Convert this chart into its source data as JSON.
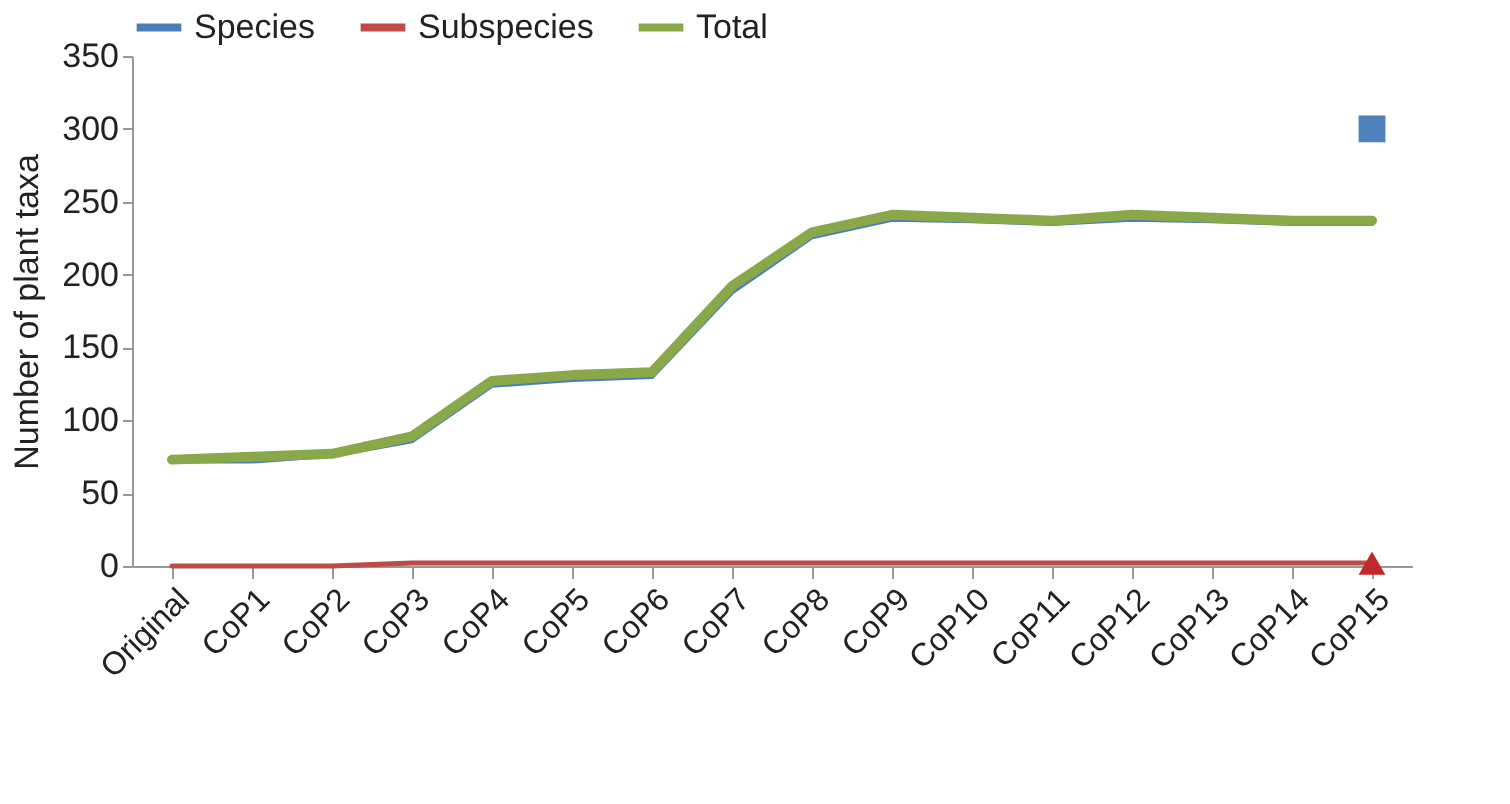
{
  "chart_data": {
    "type": "line",
    "ylabel": "Number of plant taxa",
    "categories": [
      "Original",
      "CoP1",
      "CoP2",
      "CoP3",
      "CoP4",
      "CoP5",
      "CoP6",
      "CoP7",
      "CoP8",
      "CoP9",
      "CoP10",
      "CoP11",
      "CoP12",
      "CoP13",
      "CoP14",
      "CoP15"
    ],
    "ylim": [
      0,
      350
    ],
    "yticks": [
      0,
      50,
      100,
      150,
      200,
      250,
      300,
      350
    ],
    "grid": false,
    "legend": "top left",
    "marker": "none",
    "series": [
      {
        "name": "Species",
        "color": "#4a7ebb",
        "values": [
          72,
          72,
          76,
          86,
          124,
          128,
          130,
          188,
          226,
          238,
          237,
          235,
          238,
          237,
          235,
          235
        ]
      },
      {
        "name": "Subspecies",
        "color": "#be4b48",
        "values": [
          0,
          0,
          0,
          2,
          2,
          2,
          2,
          2,
          2,
          2,
          2,
          2,
          2,
          2,
          2,
          2
        ]
      },
      {
        "name": "Total",
        "color": "#88a84a",
        "values": [
          73,
          75,
          77,
          89,
          127,
          131,
          133,
          192,
          229,
          241,
          239,
          237,
          241,
          239,
          237,
          237
        ]
      },
      {
        "type": "scatter",
        "marker": "square",
        "color": "#4f81bd",
        "x": [
          "CoP15"
        ],
        "values": [
          300
        ]
      },
      {
        "type": "scatter",
        "marker": "triangle",
        "color": "#c0282d",
        "x": [
          "CoP15"
        ],
        "values": [
          2
        ]
      }
    ]
  }
}
